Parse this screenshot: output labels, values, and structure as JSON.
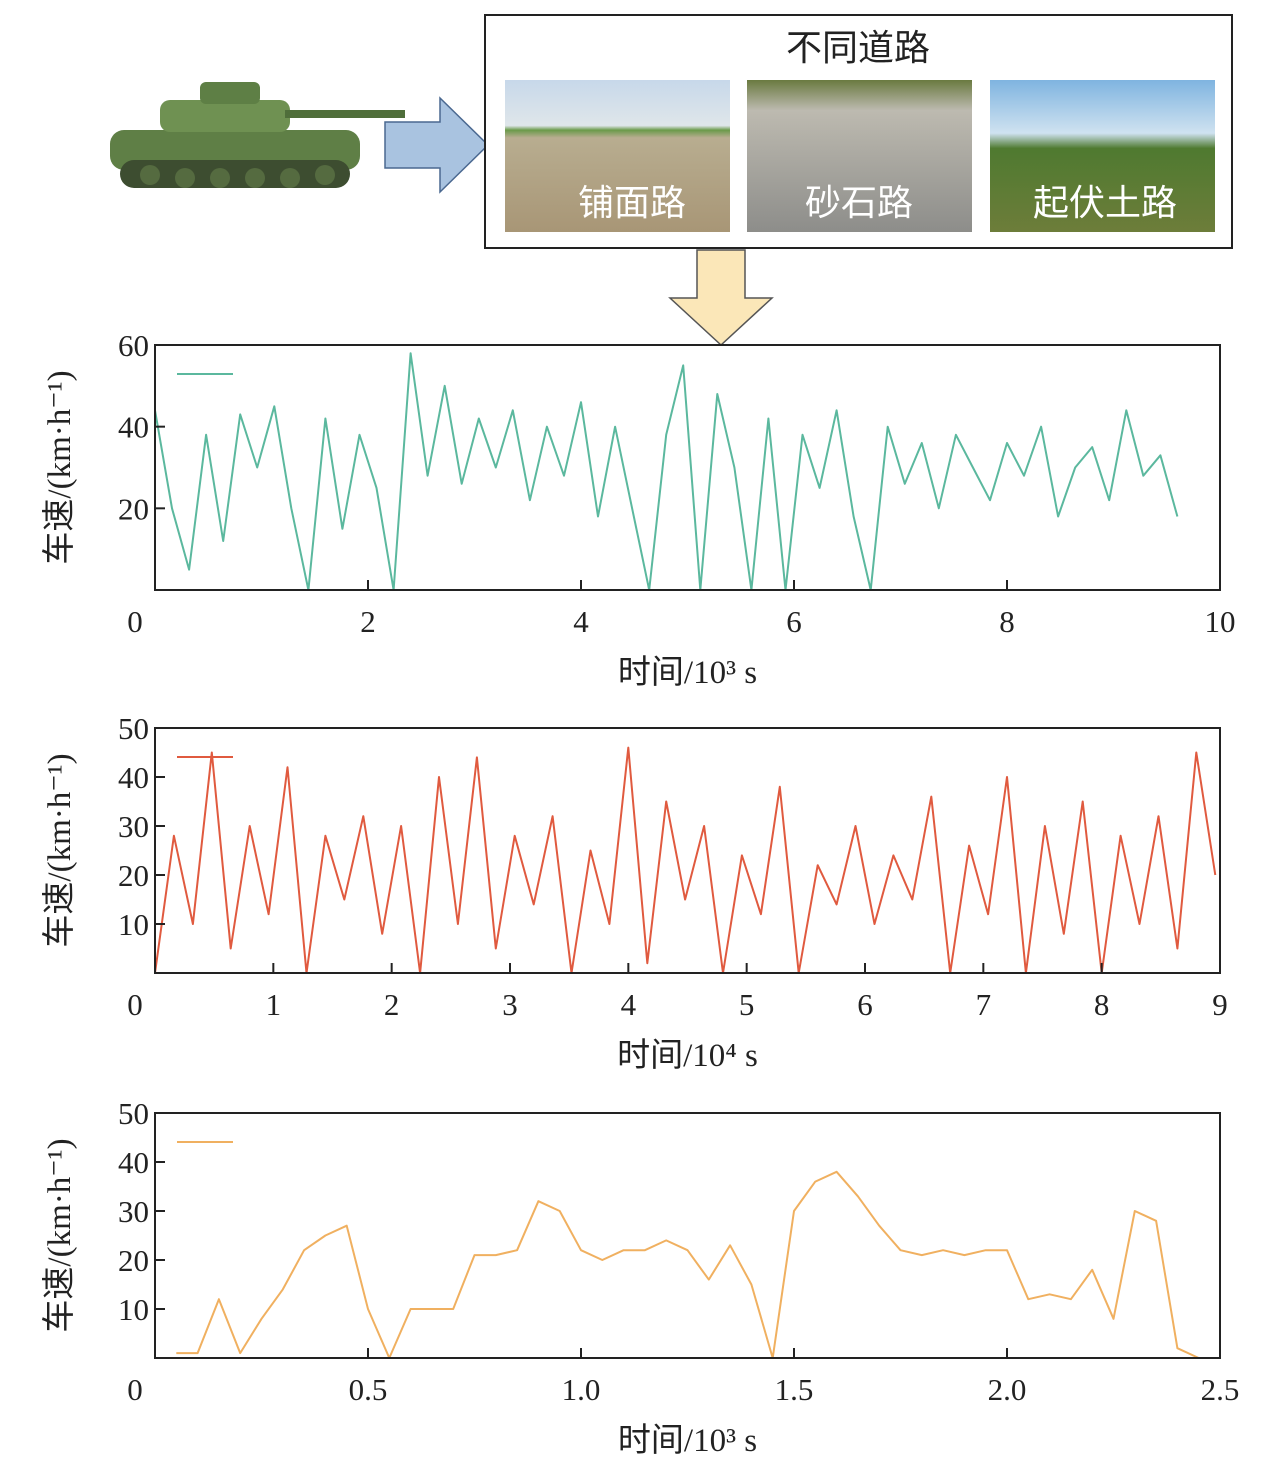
{
  "diagram": {
    "title": "不同道路",
    "roads": [
      "铺面路",
      "砂石路",
      "起伏土路"
    ]
  },
  "chart_data": [
    {
      "type": "line",
      "xlabel": "时间/10³ s",
      "ylabel": "车速/(km·h⁻¹)",
      "xlim": [
        0,
        10
      ],
      "xticks": [
        0,
        2,
        4,
        6,
        8,
        10
      ],
      "ylim": [
        0,
        60
      ],
      "yticks": [
        20,
        40,
        60
      ],
      "x": [
        0,
        0.16,
        0.32,
        0.48,
        0.64,
        0.8,
        0.96,
        1.12,
        1.28,
        1.44,
        1.6,
        1.76,
        1.92,
        2.08,
        2.24,
        2.4,
        2.56,
        2.72,
        2.88,
        3.04,
        3.2,
        3.36,
        3.52,
        3.68,
        3.84,
        4.0,
        4.16,
        4.32,
        4.48,
        4.64,
        4.8,
        4.96,
        5.12,
        5.28,
        5.44,
        5.6,
        5.76,
        5.92,
        6.08,
        6.24,
        6.4,
        6.56,
        6.72,
        6.88,
        7.04,
        7.2,
        7.36,
        7.52,
        7.68,
        7.84,
        8.0,
        8.16,
        8.32,
        8.48,
        8.64,
        8.8,
        8.96,
        9.12,
        9.28,
        9.44,
        9.6
      ],
      "series": [
        {
          "color": "#5bb89e",
          "values": [
            44,
            20,
            5,
            38,
            12,
            43,
            30,
            45,
            20,
            0,
            42,
            15,
            38,
            25,
            0,
            58,
            28,
            50,
            26,
            42,
            30,
            44,
            22,
            40,
            28,
            46,
            18,
            40,
            20,
            0,
            38,
            55,
            0,
            48,
            30,
            0,
            42,
            0,
            38,
            25,
            44,
            18,
            0,
            40,
            26,
            36,
            20,
            38,
            30,
            22,
            36,
            28,
            40,
            18,
            30,
            35,
            22,
            44,
            28,
            33,
            18
          ]
        }
      ]
    },
    {
      "type": "line",
      "xlabel": "时间/10⁴ s",
      "ylabel": "车速/(km·h⁻¹)",
      "xlim": [
        0,
        9
      ],
      "xticks": [
        0,
        1,
        2,
        3,
        4,
        5,
        6,
        7,
        8,
        9
      ],
      "ylim": [
        0,
        50
      ],
      "yticks": [
        10,
        20,
        30,
        40,
        50
      ],
      "x": [
        0,
        0.16,
        0.32,
        0.48,
        0.64,
        0.8,
        0.96,
        1.12,
        1.28,
        1.44,
        1.6,
        1.76,
        1.92,
        2.08,
        2.24,
        2.4,
        2.56,
        2.72,
        2.88,
        3.04,
        3.2,
        3.36,
        3.52,
        3.68,
        3.84,
        4.0,
        4.16,
        4.32,
        4.48,
        4.64,
        4.8,
        4.96,
        5.12,
        5.28,
        5.44,
        5.6,
        5.76,
        5.92,
        6.08,
        6.24,
        6.4,
        6.56,
        6.72,
        6.88,
        7.04,
        7.2,
        7.36,
        7.52,
        7.68,
        7.84,
        8.0,
        8.16,
        8.32,
        8.48,
        8.64,
        8.8,
        8.96
      ],
      "series": [
        {
          "color": "#e05a3f",
          "values": [
            0,
            28,
            10,
            45,
            5,
            30,
            12,
            42,
            0,
            28,
            15,
            32,
            8,
            30,
            0,
            40,
            10,
            44,
            5,
            28,
            14,
            32,
            0,
            25,
            10,
            46,
            2,
            35,
            15,
            30,
            0,
            24,
            12,
            38,
            0,
            22,
            14,
            30,
            10,
            24,
            15,
            36,
            0,
            26,
            12,
            40,
            0,
            30,
            8,
            35,
            0,
            28,
            10,
            32,
            5,
            45,
            20
          ]
        }
      ]
    },
    {
      "type": "line",
      "xlabel": "时间/10³ s",
      "ylabel": "车速/(km·h⁻¹)",
      "xlim": [
        0,
        2.5
      ],
      "xticks": [
        0,
        0.5,
        {
          "value": 1,
          "label": "1.0"
        },
        1.5,
        {
          "value": 2,
          "label": "2.0"
        },
        2.5
      ],
      "ylim": [
        0,
        50
      ],
      "yticks": [
        10,
        20,
        30,
        40,
        50
      ],
      "x": [
        0.05,
        0.1,
        0.15,
        0.2,
        0.25,
        0.3,
        0.35,
        0.4,
        0.45,
        0.5,
        0.55,
        0.6,
        0.65,
        0.7,
        0.75,
        0.8,
        0.85,
        0.9,
        0.95,
        1.0,
        1.05,
        1.1,
        1.15,
        1.2,
        1.25,
        1.3,
        1.35,
        1.4,
        1.45,
        1.5,
        1.55,
        1.6,
        1.65,
        1.7,
        1.75,
        1.8,
        1.85,
        1.9,
        1.95,
        2.0,
        2.05,
        2.1,
        2.15,
        2.2,
        2.25,
        2.3,
        2.35,
        2.4,
        2.45
      ],
      "series": [
        {
          "color": "#f0b060",
          "values": [
            1,
            1,
            12,
            1,
            8,
            14,
            22,
            25,
            27,
            10,
            0,
            10,
            10,
            10,
            21,
            21,
            22,
            32,
            30,
            22,
            20,
            22,
            22,
            24,
            22,
            16,
            23,
            15,
            0,
            30,
            36,
            38,
            33,
            27,
            22,
            21,
            22,
            21,
            22,
            22,
            12,
            13,
            12,
            18,
            8,
            30,
            28,
            2,
            0
          ]
        }
      ]
    }
  ]
}
